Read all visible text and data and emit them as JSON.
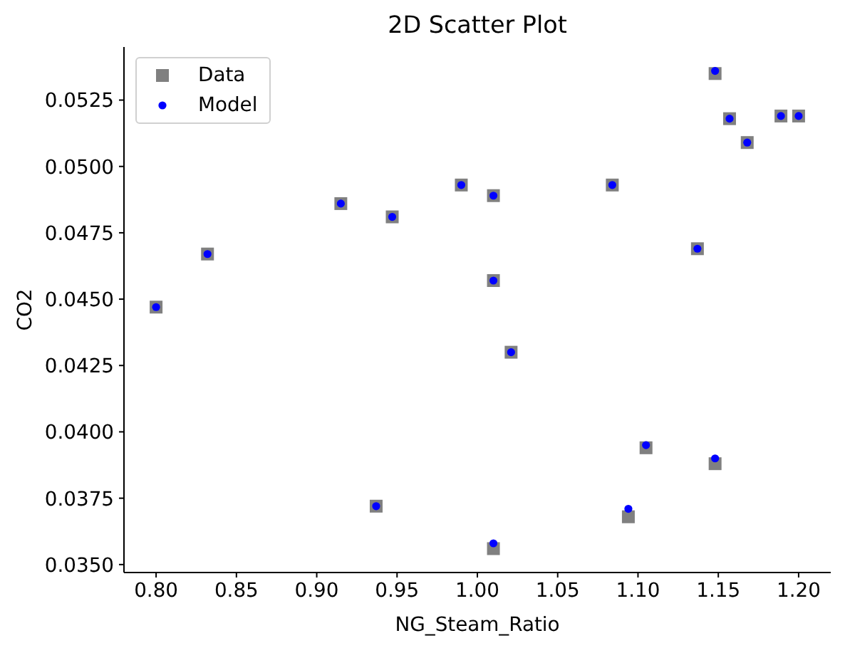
{
  "chart_data": {
    "type": "scatter",
    "title": "2D Scatter Plot",
    "xlabel": "NG_Steam_Ratio",
    "ylabel": "CO2",
    "legend": "top left",
    "xlim": [
      0.78,
      1.22
    ],
    "ylim": [
      0.0347,
      0.0545
    ],
    "xticks": [
      {
        "value": 0.8,
        "label": "0.80"
      },
      {
        "value": 0.85,
        "label": "0.85"
      },
      {
        "value": 0.9,
        "label": "0.90"
      },
      {
        "value": 0.95,
        "label": "0.95"
      },
      {
        "value": 1.0,
        "label": "1.00"
      },
      {
        "value": 1.05,
        "label": "1.05"
      },
      {
        "value": 1.1,
        "label": "1.10"
      },
      {
        "value": 1.15,
        "label": "1.15"
      },
      {
        "value": 1.2,
        "label": "1.20"
      }
    ],
    "yticks": [
      {
        "value": 0.035,
        "label": "0.0350"
      },
      0.0375,
      {
        "value": 0.04,
        "label": "0.0400"
      },
      0.0425,
      {
        "value": 0.045,
        "label": "0.0450"
      },
      0.0475,
      {
        "value": 0.05,
        "label": "0.0500"
      },
      0.0525
    ],
    "x": [
      0.8,
      0.832,
      0.915,
      0.937,
      0.947,
      0.99,
      1.01,
      1.01,
      1.01,
      1.021,
      1.084,
      1.094,
      1.105,
      1.137,
      1.148,
      1.148,
      1.157,
      1.168,
      1.189,
      1.2
    ],
    "series": [
      {
        "name": "Data",
        "color": "#808080",
        "marker": "square",
        "values": [
          0.0447,
          0.0467,
          0.0486,
          0.0372,
          0.0481,
          0.0493,
          0.0489,
          0.0457,
          0.0356,
          0.043,
          0.0493,
          0.0368,
          0.0394,
          0.0469,
          0.0535,
          0.0388,
          0.0518,
          0.0509,
          0.0519,
          0.0519
        ]
      },
      {
        "name": "Model",
        "color": "#0000ff",
        "marker": "circle",
        "values": [
          0.0447,
          0.0467,
          0.0486,
          0.0372,
          0.0481,
          0.0493,
          0.0489,
          0.0457,
          0.0358,
          0.043,
          0.0493,
          0.0371,
          0.0395,
          0.0469,
          0.0536,
          0.039,
          0.0518,
          0.0509,
          0.0519,
          0.0519
        ]
      }
    ]
  }
}
